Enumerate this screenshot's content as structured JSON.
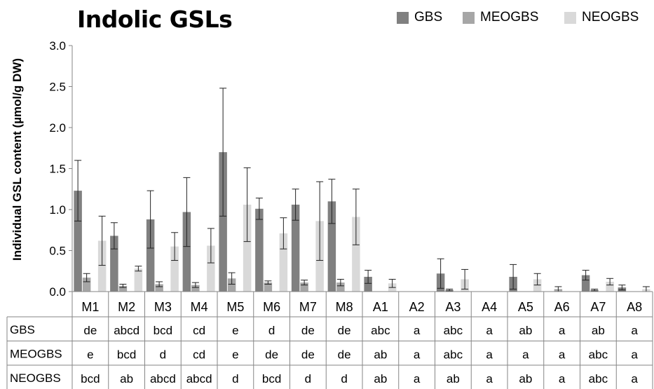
{
  "chart_data": {
    "type": "bar",
    "title": "Indolic GSLs",
    "ylabel": "Individual GSL content (µmol/g DW)",
    "xlabel": "",
    "ylim": [
      0,
      3.0
    ],
    "yticks": [
      "0.0",
      "0.5",
      "1.0",
      "1.5",
      "2.0",
      "2.5",
      "3.0"
    ],
    "grid": false,
    "legend_position": "top-right",
    "categories": [
      "M1",
      "M2",
      "M3",
      "M4",
      "M5",
      "M6",
      "M7",
      "M8",
      "A1",
      "A2",
      "A3",
      "A4",
      "A5",
      "A6",
      "A7",
      "A8"
    ],
    "series": [
      {
        "name": "GBS",
        "color": "#808080",
        "values": [
          1.23,
          0.68,
          0.88,
          0.97,
          1.7,
          1.01,
          1.06,
          1.1,
          0.18,
          0,
          0.22,
          0,
          0.18,
          0,
          0.2,
          0.05
        ],
        "errors": [
          0.37,
          0.16,
          0.35,
          0.42,
          0.78,
          0.13,
          0.19,
          0.27,
          0.08,
          0,
          0.18,
          0,
          0.15,
          0,
          0.06,
          0.03
        ]
      },
      {
        "name": "MEOGBS",
        "color": "#a6a6a6",
        "values": [
          0.17,
          0.07,
          0.09,
          0.08,
          0.16,
          0.11,
          0.11,
          0.11,
          0,
          0,
          0.02,
          0,
          0,
          0.03,
          0.02,
          0
        ],
        "errors": [
          0.05,
          0.02,
          0.03,
          0.03,
          0.07,
          0.02,
          0.03,
          0.04,
          0,
          0,
          0.01,
          0,
          0,
          0.03,
          0.01,
          0
        ]
      },
      {
        "name": "NEOGBS",
        "color": "#d9d9d9",
        "values": [
          0.62,
          0.28,
          0.55,
          0.56,
          1.06,
          0.71,
          0.86,
          0.91,
          0.1,
          0,
          0.15,
          0,
          0.15,
          0,
          0.12,
          0.03
        ],
        "errors": [
          0.3,
          0.03,
          0.17,
          0.21,
          0.45,
          0.19,
          0.48,
          0.34,
          0.05,
          0,
          0.12,
          0,
          0.07,
          0,
          0.04,
          0.03
        ]
      }
    ],
    "table": {
      "rows": [
        {
          "label": "GBS",
          "cells": [
            "de",
            "abcd",
            "bcd",
            "cd",
            "e",
            "d",
            "de",
            "de",
            "abc",
            "a",
            "abc",
            "a",
            "ab",
            "a",
            "ab",
            "a"
          ]
        },
        {
          "label": "MEOGBS",
          "cells": [
            "e",
            "bcd",
            "d",
            "cd",
            "e",
            "de",
            "de",
            "de",
            "ab",
            "a",
            "abc",
            "a",
            "a",
            "a",
            "abc",
            "a"
          ]
        },
        {
          "label": "NEOGBS",
          "cells": [
            "bcd",
            "ab",
            "abcd",
            "abcd",
            "d",
            "bcd",
            "d",
            "d",
            "ab",
            "a",
            "ab",
            "a",
            "ab",
            "a",
            "abc",
            "a"
          ]
        }
      ]
    }
  }
}
